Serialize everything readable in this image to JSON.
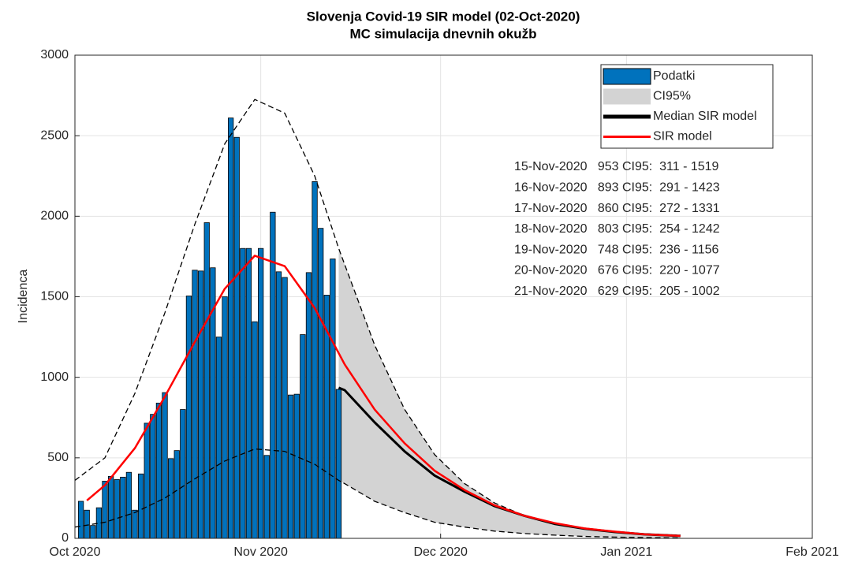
{
  "chart_data": {
    "type": "combo",
    "title": "Slovenja Covid-19 SIR model (02-Oct-2020)",
    "subtitle": "MC simulacija dnevnih okužb",
    "ylabel": "Incidenca",
    "xlim": [
      0,
      123
    ],
    "xticks": [
      {
        "value": 0,
        "label": "Oct 2020"
      },
      {
        "value": 31,
        "label": "Nov 2020"
      },
      {
        "value": 61,
        "label": "Dec 2020"
      },
      {
        "value": 92,
        "label": "Jan 2021"
      },
      {
        "value": 123,
        "label": "Feb 2021"
      }
    ],
    "ylim": [
      0,
      3000
    ],
    "yticks": [
      0,
      500,
      1000,
      1500,
      2000,
      2500,
      3000
    ],
    "grid": true,
    "legend": "upper right",
    "series": [
      {
        "name": "Podatki",
        "type": "bar",
        "color": "#0072bd",
        "x": [
          1,
          2,
          3,
          4,
          5,
          6,
          7,
          8,
          9,
          10,
          11,
          12,
          13,
          14,
          15,
          16,
          17,
          18,
          19,
          20,
          21,
          22,
          23,
          24,
          25,
          26,
          27,
          28,
          29,
          30,
          31,
          32,
          33,
          34,
          35,
          36,
          37,
          38,
          39,
          40,
          41,
          42,
          43,
          44
        ],
        "values": [
          230,
          175,
          80,
          190,
          355,
          385,
          365,
          380,
          410,
          175,
          400,
          715,
          770,
          840,
          905,
          495,
          545,
          800,
          1505,
          1665,
          1660,
          1960,
          1680,
          1250,
          1500,
          2610,
          2490,
          1800,
          1800,
          1345,
          1800,
          515,
          2025,
          1655,
          1620,
          890,
          895,
          1265,
          1650,
          2215,
          1925,
          1510,
          1735,
          925
        ]
      },
      {
        "name": "CI95%",
        "type": "band",
        "color": "#d3d3d3",
        "x": [
          44,
          45,
          50,
          55,
          60,
          65,
          70,
          75,
          80,
          85,
          90,
          95,
          101
        ],
        "lower": [
          360,
          340,
          230,
          160,
          100,
          70,
          45,
          30,
          20,
          12,
          8,
          5,
          3
        ],
        "upper": [
          1800,
          1700,
          1200,
          800,
          520,
          340,
          220,
          140,
          90,
          60,
          40,
          28,
          20
        ]
      },
      {
        "type": "line",
        "linestyle": "dashed",
        "color": "#000000",
        "x": [
          0,
          5,
          10,
          15,
          20,
          25,
          30,
          35,
          40,
          44,
          45,
          50,
          55,
          60,
          65,
          70,
          75,
          80,
          85,
          90,
          95,
          101
        ],
        "values": [
          360,
          500,
          900,
          1400,
          1950,
          2450,
          2725,
          2640,
          2250,
          1800,
          1700,
          1200,
          800,
          520,
          340,
          220,
          140,
          90,
          60,
          40,
          28,
          20
        ]
      },
      {
        "type": "line",
        "linestyle": "dashed",
        "color": "#000000",
        "x": [
          0,
          5,
          10,
          15,
          20,
          25,
          30,
          35,
          40,
          44,
          45,
          50,
          55,
          60,
          65,
          70,
          75,
          80,
          85,
          90,
          95,
          101
        ],
        "values": [
          70,
          100,
          160,
          250,
          370,
          480,
          555,
          540,
          460,
          360,
          340,
          230,
          160,
          100,
          70,
          45,
          30,
          20,
          12,
          8,
          5,
          3
        ]
      },
      {
        "name": "Median SIR model",
        "type": "line",
        "linestyle": "solid",
        "color": "#000000",
        "x": [
          44,
          45,
          50,
          55,
          60,
          65,
          70,
          75,
          80,
          85,
          90,
          95,
          101
        ],
        "values": [
          935,
          920,
          720,
          540,
          390,
          290,
          200,
          140,
          90,
          60,
          40,
          25,
          15
        ]
      },
      {
        "name": "SIR model",
        "type": "line",
        "linestyle": "solid",
        "color": "#ff0000",
        "x": [
          2,
          5,
          10,
          15,
          20,
          25,
          30,
          35,
          40,
          45,
          50,
          55,
          60,
          65,
          70,
          75,
          80,
          85,
          90,
          95,
          101
        ],
        "values": [
          235,
          330,
          560,
          880,
          1220,
          1550,
          1755,
          1690,
          1430,
          1080,
          800,
          590,
          420,
          300,
          205,
          140,
          95,
          62,
          42,
          25,
          15
        ]
      }
    ],
    "annotations": [
      "15-Nov-2020   953 CI95:  311 - 1519",
      "16-Nov-2020   893 CI95:  291 - 1423",
      "17-Nov-2020   860 CI95:  272 - 1331",
      "18-Nov-2020   803 CI95:  254 - 1242",
      "19-Nov-2020   748 CI95:  236 - 1156",
      "20-Nov-2020   676 CI95:  220 - 1077",
      "21-Nov-2020   629 CI95:  205 - 1002"
    ]
  }
}
